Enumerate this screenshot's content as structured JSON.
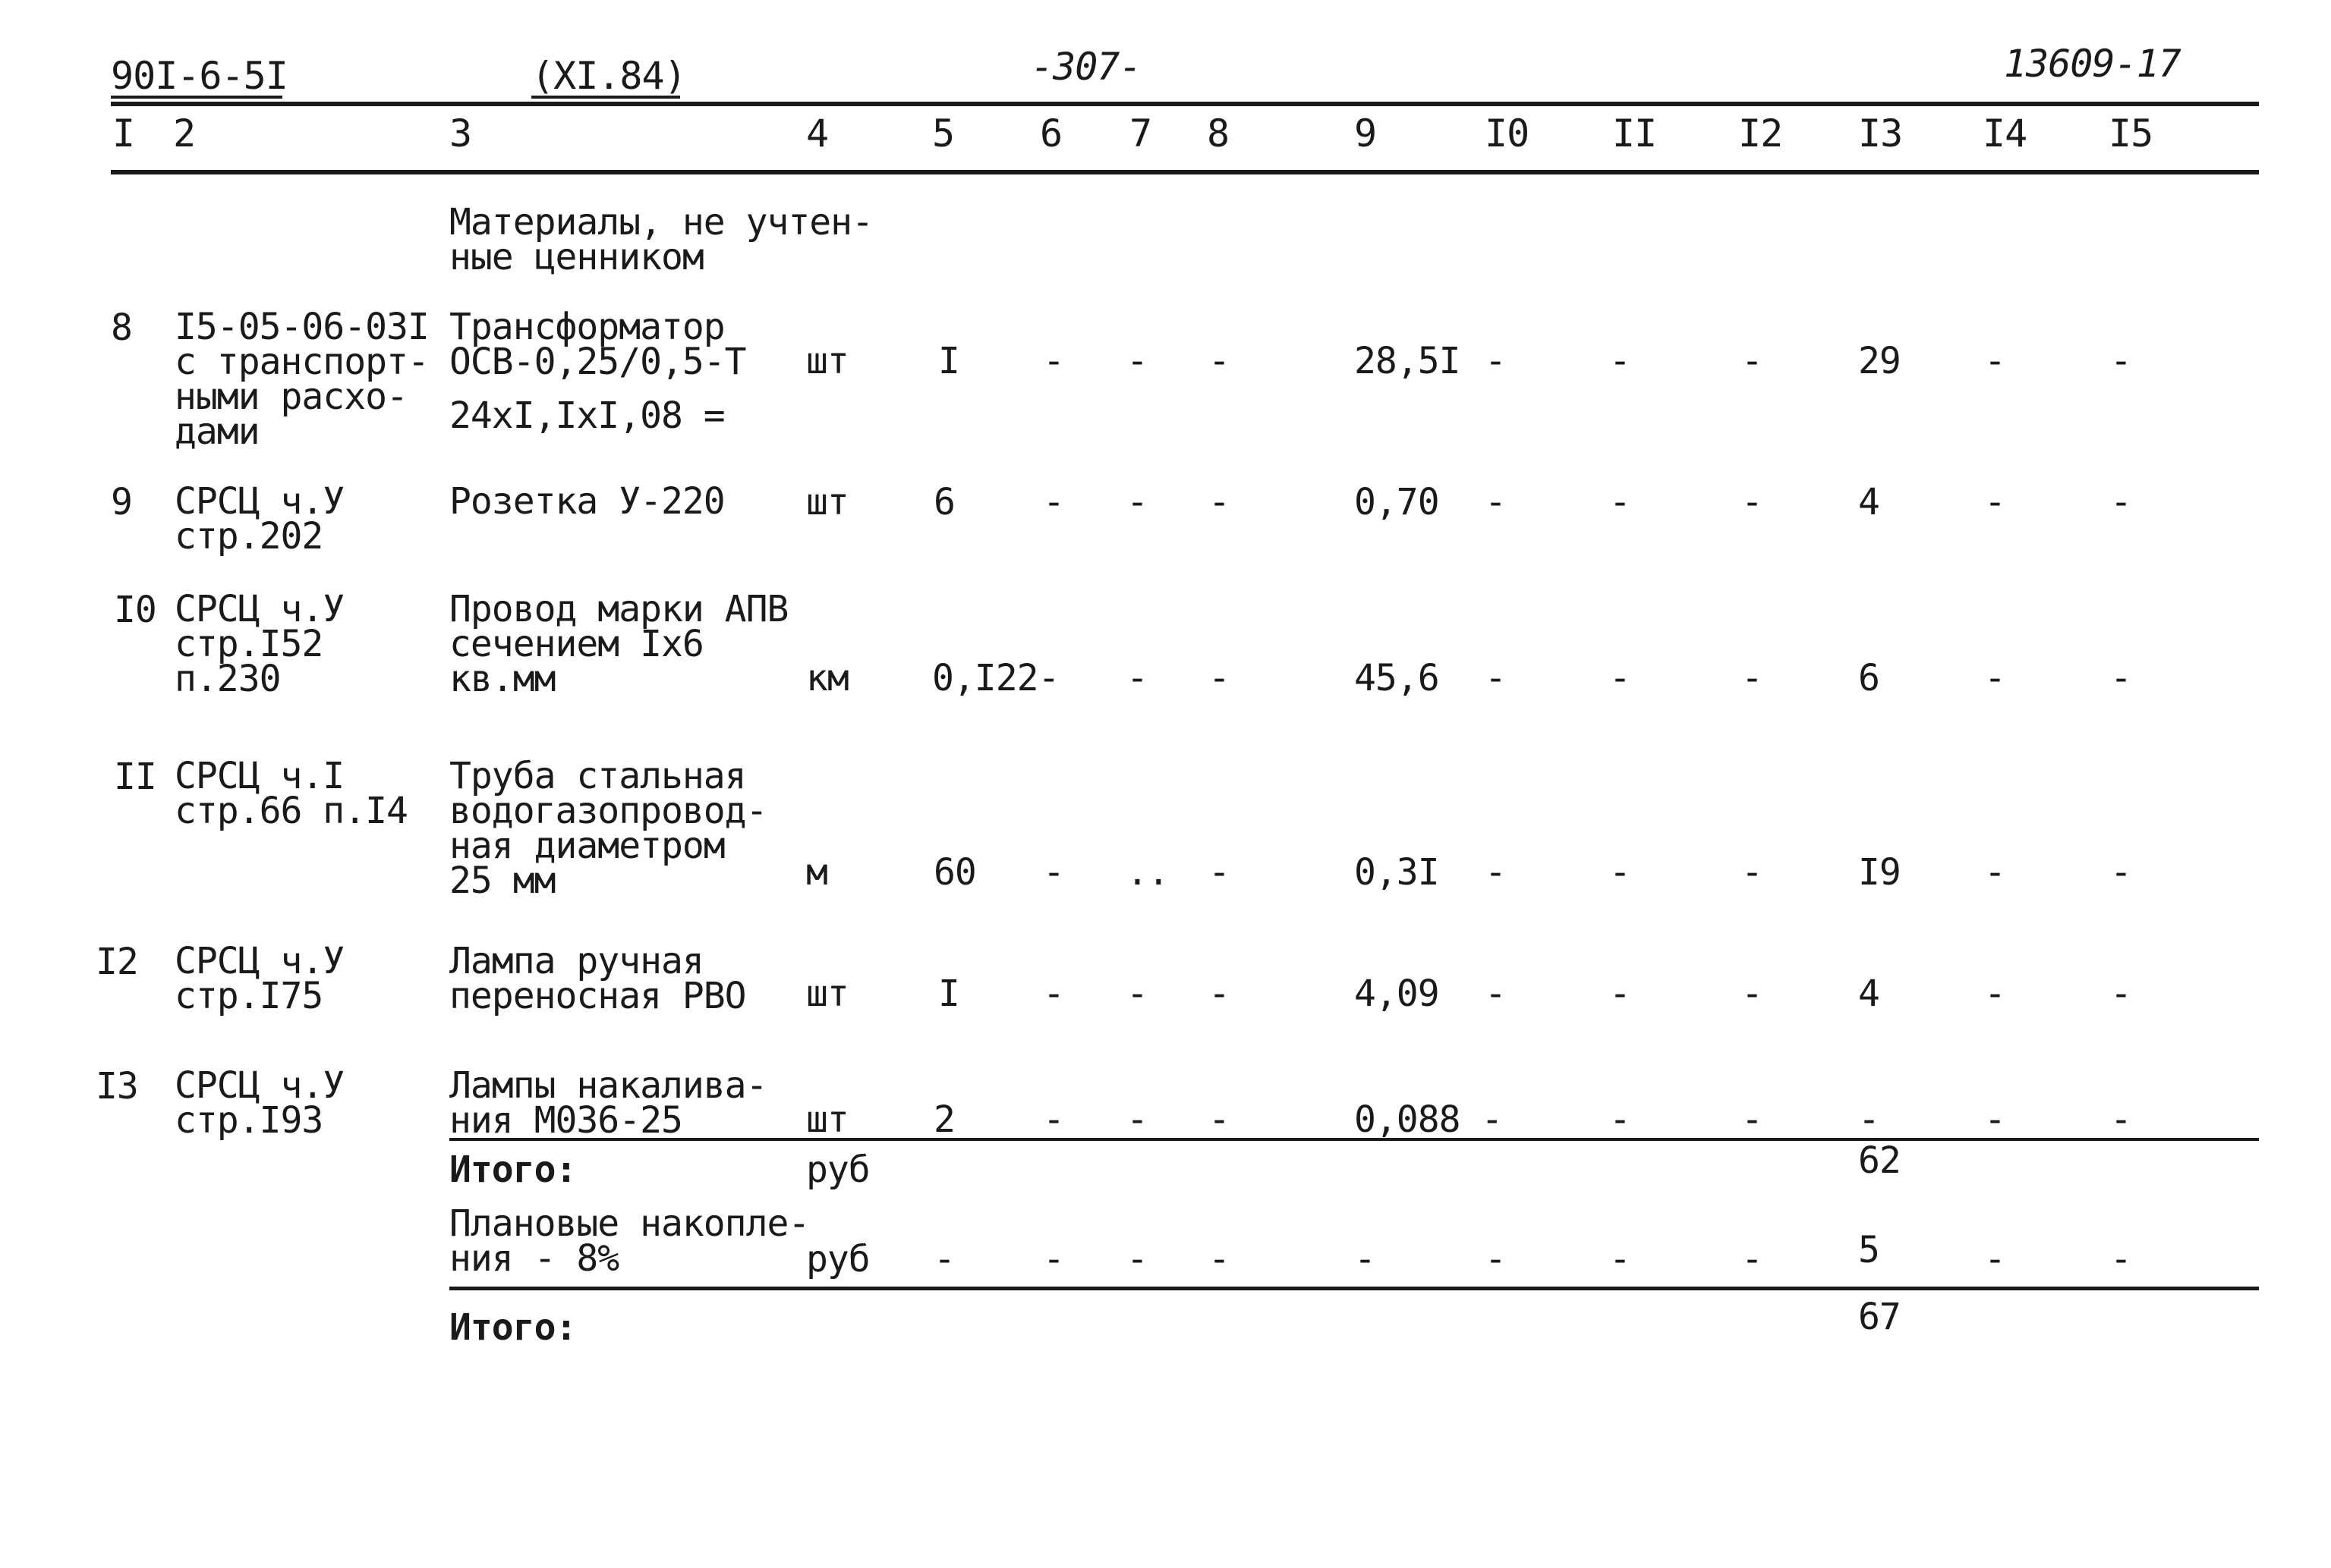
{
  "header": {
    "doc_code": "90I-6-5I",
    "date_code": "(XI.84)",
    "page_number": "-307-",
    "inventory": "13609-17"
  },
  "columns": [
    "I",
    "2",
    "3",
    "4",
    "5",
    "6",
    "7",
    "8",
    "9",
    "I0",
    "II",
    "I2",
    "I3",
    "I4",
    "I5"
  ],
  "intro_note": "Материалы, не учтен-\nные ценником",
  "rows": [
    {
      "num": "8",
      "code": "I5-05-06-03I\nс транспорт-\nными расхо-\nдами",
      "name": "Трансформатор\nОСВ-0,25/0,5-Т",
      "name_extra": "24xI,IxI,08 =",
      "unit": "шт",
      "qty": "I",
      "c6": "-",
      "c7": "-",
      "c8": "-",
      "price": "28,5I",
      "c10": "-",
      "c11": "-",
      "c12": "-",
      "total": "29",
      "c14": "-",
      "c15": "-"
    },
    {
      "num": "9",
      "code": "СРСЦ ч.У\nстр.202",
      "name": "Розетка У-220",
      "unit": "шт",
      "qty": "6",
      "c6": "-",
      "c7": "-",
      "c8": "-",
      "price": "0,70",
      "c10": "-",
      "c11": "-",
      "c12": "-",
      "total": "4",
      "c14": "-",
      "c15": "-"
    },
    {
      "num": "I0",
      "code": "СРСЦ ч.У\nстр.I52\nп.230",
      "name": "Провод марки АПВ\nсечением Iх6\nкв.мм",
      "unit": "км",
      "qty": "0,I22-",
      "c6": "",
      "c7": "-",
      "c8": "-",
      "price": "45,6",
      "c10": "-",
      "c11": "-",
      "c12": "-",
      "total": "6",
      "c14": "-",
      "c15": "-"
    },
    {
      "num": "II",
      "code": "СРСЦ ч.I\nстр.66 п.I4",
      "name": "Труба стальная\nводогазопровод-\nная диаметром\n25 мм",
      "unit": "м",
      "qty": "60",
      "c6": "-",
      "c7": "..",
      "c8": "-",
      "price": "0,3I",
      "c10": "-",
      "c11": "-",
      "c12": "-",
      "total": "I9",
      "c14": "-",
      "c15": "-"
    },
    {
      "num": "I2",
      "code": "СРСЦ ч.У\nстр.I75",
      "name": "Лампа ручная\nпереносная РВО",
      "unit": "шт",
      "qty": "I",
      "c6": "-",
      "c7": "-",
      "c8": "-",
      "price": "4,09",
      "c10": "-",
      "c11": "-",
      "c12": "-",
      "total": "4",
      "c14": "-",
      "c15": "-"
    },
    {
      "num": "I3",
      "code": "СРСЦ ч.У\nстр.I93",
      "name": "Лампы накалива-\nния М036-25",
      "unit": "шт",
      "qty": "2",
      "c6": "-",
      "c7": "-",
      "c8": "-",
      "price": "0,088 -",
      "c10": "",
      "c11": "-",
      "c12": "-",
      "total": "-",
      "c14": "-",
      "c15": "-"
    }
  ],
  "subtotal": {
    "label": "Итого:",
    "unit": "руб",
    "total": "62"
  },
  "planned": {
    "label": "Плановые накопле-\nния - 8%",
    "unit": "руб",
    "c5": "-",
    "c6": "-",
    "c7": "-",
    "c8": "-",
    "c9": "-",
    "c10": "-",
    "c11": "-",
    "c12": "-",
    "total": "5",
    "c14": "-",
    "c15": "-"
  },
  "grand_total": {
    "label": "Итого:",
    "total": "67"
  }
}
